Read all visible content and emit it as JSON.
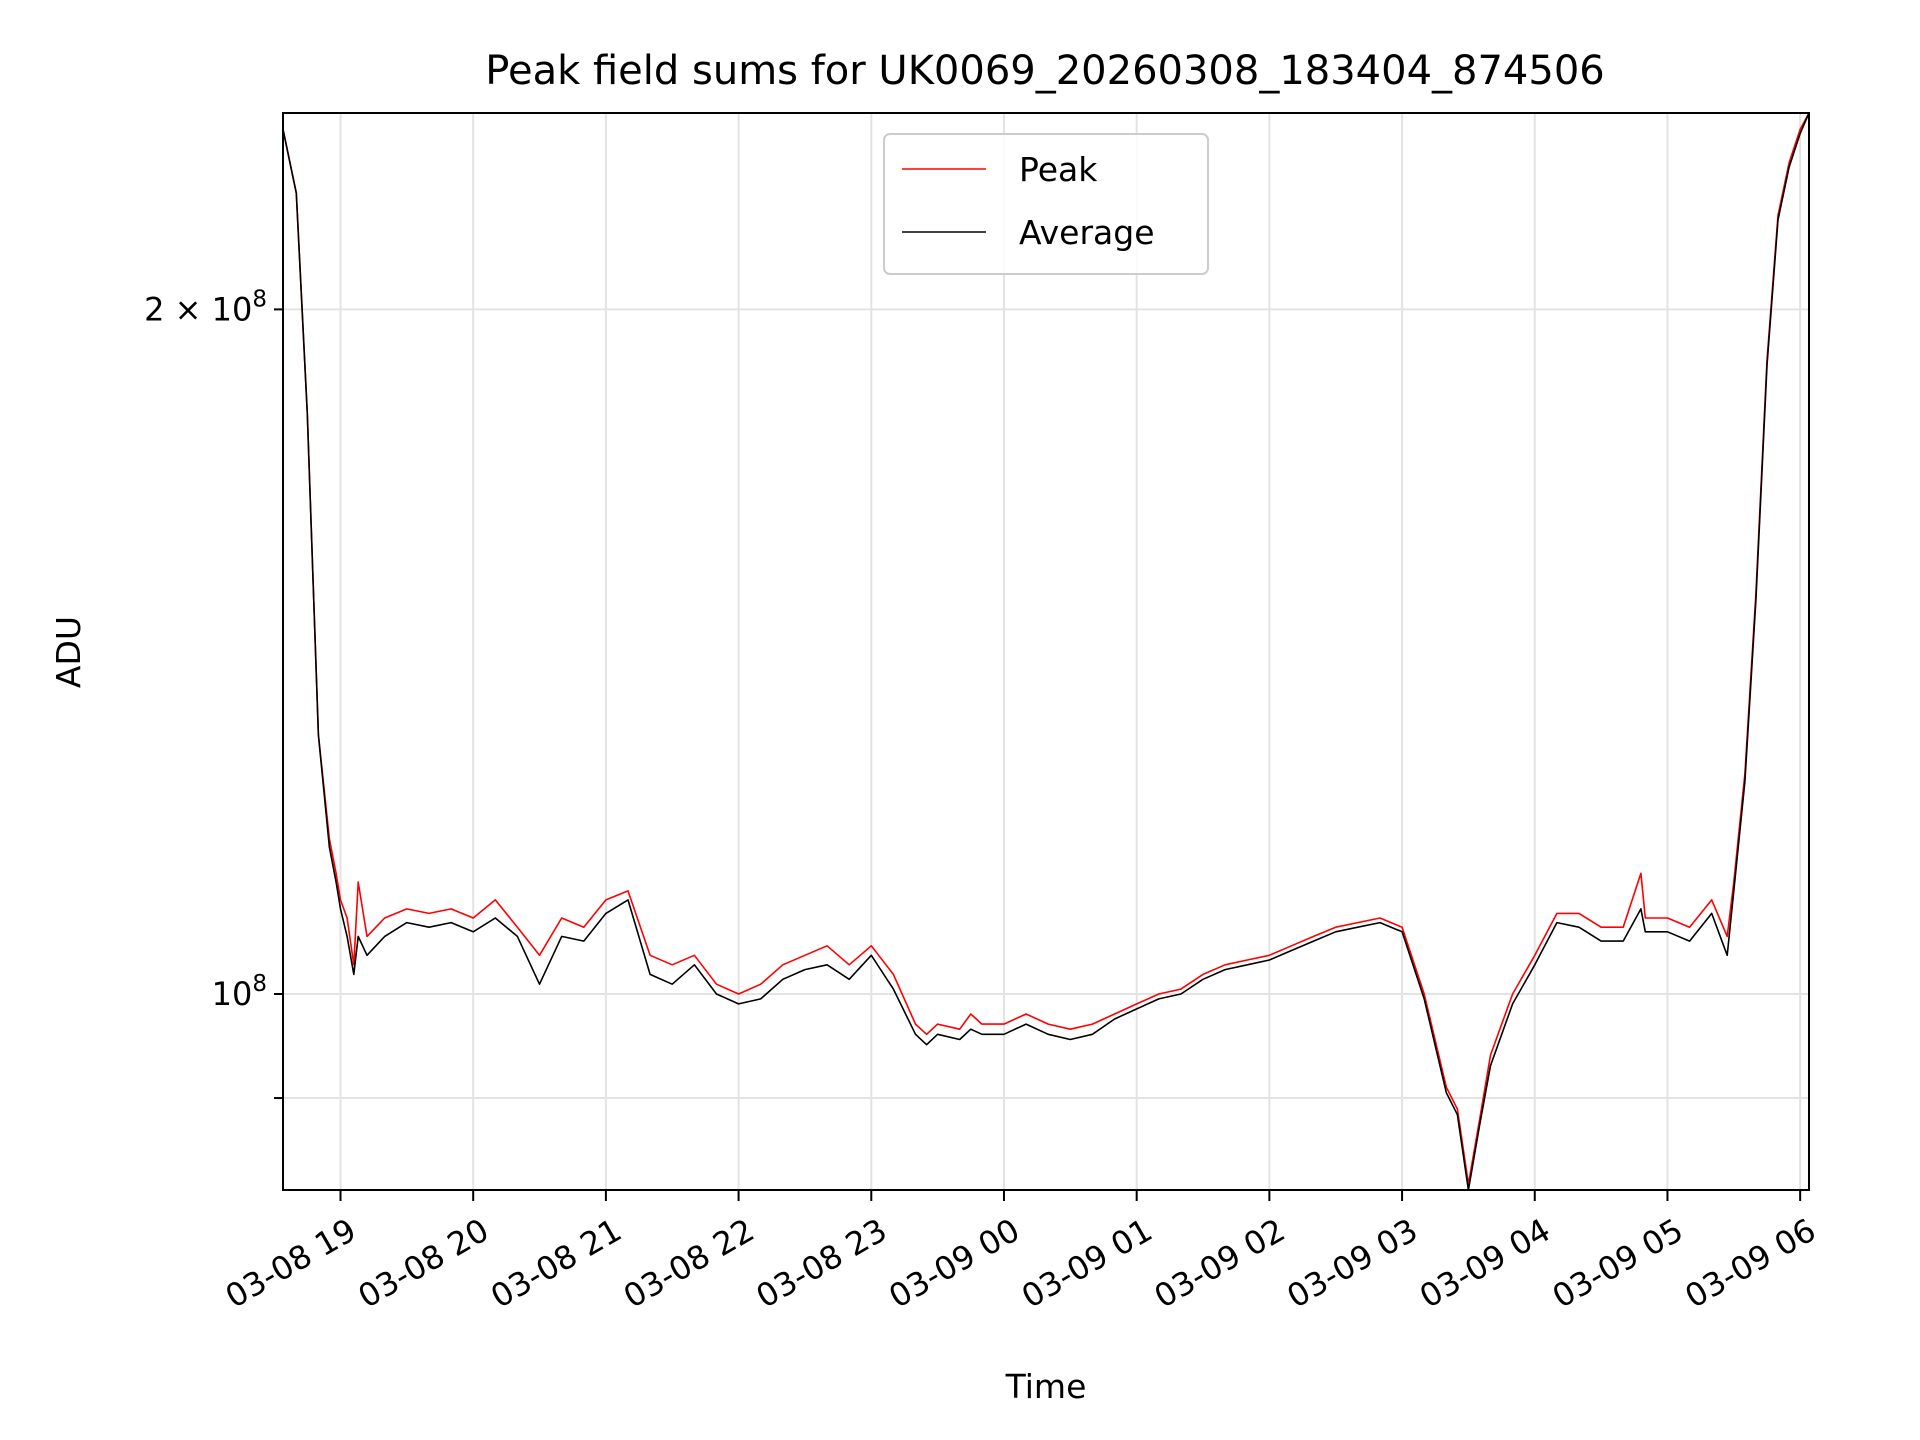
{
  "chart_data": {
    "type": "line",
    "title": "Peak field sums for UK0069_20260308_183404_874506",
    "xlabel": "Time",
    "ylabel": "ADU",
    "yscale": "log",
    "xlim": [
      "2026-03-08 18:34",
      "2026-03-09 06:04"
    ],
    "ylim": [
      82000000,
      244000000
    ],
    "x_ticks": [
      "03-08 19",
      "03-08 20",
      "03-08 21",
      "03-08 22",
      "03-08 23",
      "03-09 00",
      "03-09 01",
      "03-09 02",
      "03-09 03",
      "03-09 04",
      "03-09 05",
      "03-09 06"
    ],
    "x_tick_times": [
      "2026-03-08 19:00",
      "2026-03-08 20:00",
      "2026-03-08 21:00",
      "2026-03-08 22:00",
      "2026-03-08 23:00",
      "2026-03-09 00:00",
      "2026-03-09 01:00",
      "2026-03-09 02:00",
      "2026-03-09 03:00",
      "2026-03-09 04:00",
      "2026-03-09 05:00",
      "2026-03-09 06:00"
    ],
    "y_ticks": [
      {
        "value": 200000000,
        "label": "2 × 10",
        "exp": "8"
      },
      {
        "value": 100000000,
        "label": "10",
        "exp": "8"
      },
      {
        "value": 90000000,
        "label": "",
        "exp": ""
      }
    ],
    "grid": true,
    "legend_position": "upper center",
    "series": [
      {
        "name": "Peak",
        "color": "#ff0000",
        "x": [
          "2026-03-08 18:34",
          "2026-03-08 18:40",
          "2026-03-08 18:45",
          "2026-03-08 18:50",
          "2026-03-08 18:55",
          "2026-03-08 18:58",
          "2026-03-08 19:00",
          "2026-03-08 19:03",
          "2026-03-08 19:06",
          "2026-03-08 19:08",
          "2026-03-08 19:12",
          "2026-03-08 19:20",
          "2026-03-08 19:30",
          "2026-03-08 19:40",
          "2026-03-08 19:50",
          "2026-03-08 20:00",
          "2026-03-08 20:10",
          "2026-03-08 20:20",
          "2026-03-08 20:30",
          "2026-03-08 20:40",
          "2026-03-08 20:50",
          "2026-03-08 21:00",
          "2026-03-08 21:10",
          "2026-03-08 21:20",
          "2026-03-08 21:30",
          "2026-03-08 21:40",
          "2026-03-08 21:50",
          "2026-03-08 22:00",
          "2026-03-08 22:10",
          "2026-03-08 22:20",
          "2026-03-08 22:30",
          "2026-03-08 22:40",
          "2026-03-08 22:50",
          "2026-03-08 23:00",
          "2026-03-08 23:10",
          "2026-03-08 23:20",
          "2026-03-08 23:25",
          "2026-03-08 23:30",
          "2026-03-08 23:40",
          "2026-03-08 23:45",
          "2026-03-08 23:50",
          "2026-03-09 00:00",
          "2026-03-09 00:10",
          "2026-03-09 00:20",
          "2026-03-09 00:30",
          "2026-03-09 00:40",
          "2026-03-09 00:50",
          "2026-03-09 01:00",
          "2026-03-09 01:10",
          "2026-03-09 01:20",
          "2026-03-09 01:30",
          "2026-03-09 01:40",
          "2026-03-09 01:50",
          "2026-03-09 02:00",
          "2026-03-09 02:10",
          "2026-03-09 02:20",
          "2026-03-09 02:30",
          "2026-03-09 02:40",
          "2026-03-09 02:50",
          "2026-03-09 03:00",
          "2026-03-09 03:10",
          "2026-03-09 03:20",
          "2026-03-09 03:25",
          "2026-03-09 03:30",
          "2026-03-09 03:35",
          "2026-03-09 03:40",
          "2026-03-09 03:50",
          "2026-03-09 04:00",
          "2026-03-09 04:10",
          "2026-03-09 04:20",
          "2026-03-09 04:30",
          "2026-03-09 04:40",
          "2026-03-09 04:48",
          "2026-03-09 04:50",
          "2026-03-09 05:00",
          "2026-03-09 05:10",
          "2026-03-09 05:20",
          "2026-03-09 05:27",
          "2026-03-09 05:30",
          "2026-03-09 05:35",
          "2026-03-09 05:40",
          "2026-03-09 05:45",
          "2026-03-09 05:50",
          "2026-03-09 05:55",
          "2026-03-09 06:00",
          "2026-03-09 06:04"
        ],
        "y": [
          240000000,
          225000000,
          180000000,
          130000000,
          117000000,
          113000000,
          110000000,
          108000000,
          103000000,
          112000000,
          106000000,
          108000000,
          109000000,
          108500000,
          109000000,
          108000000,
          110000000,
          107000000,
          104000000,
          108000000,
          107000000,
          110000000,
          111000000,
          104000000,
          103000000,
          104000000,
          101000000,
          100000000,
          101000000,
          103000000,
          104000000,
          105000000,
          103000000,
          105000000,
          102000000,
          97000000,
          96000000,
          97000000,
          96500000,
          98000000,
          97000000,
          97000000,
          98000000,
          97000000,
          96500000,
          97000000,
          98000000,
          99000000,
          100000000,
          100500000,
          102000000,
          103000000,
          103500000,
          104000000,
          105000000,
          106000000,
          107000000,
          107500000,
          108000000,
          107000000,
          100000000,
          91000000,
          89000000,
          82500000,
          88000000,
          94000000,
          100000000,
          104000000,
          108500000,
          108500000,
          107000000,
          107000000,
          113000000,
          108000000,
          108000000,
          107000000,
          110000000,
          106000000,
          112000000,
          125000000,
          150000000,
          190000000,
          220000000,
          232000000,
          240000000,
          244000000
        ]
      },
      {
        "name": "Average",
        "color": "#000000",
        "x": [
          "2026-03-08 18:34",
          "2026-03-08 18:40",
          "2026-03-08 18:45",
          "2026-03-08 18:50",
          "2026-03-08 18:55",
          "2026-03-08 18:58",
          "2026-03-08 19:00",
          "2026-03-08 19:03",
          "2026-03-08 19:06",
          "2026-03-08 19:08",
          "2026-03-08 19:12",
          "2026-03-08 19:20",
          "2026-03-08 19:30",
          "2026-03-08 19:40",
          "2026-03-08 19:50",
          "2026-03-08 20:00",
          "2026-03-08 20:10",
          "2026-03-08 20:20",
          "2026-03-08 20:30",
          "2026-03-08 20:40",
          "2026-03-08 20:50",
          "2026-03-08 21:00",
          "2026-03-08 21:10",
          "2026-03-08 21:20",
          "2026-03-08 21:30",
          "2026-03-08 21:40",
          "2026-03-08 21:50",
          "2026-03-08 22:00",
          "2026-03-08 22:10",
          "2026-03-08 22:20",
          "2026-03-08 22:30",
          "2026-03-08 22:40",
          "2026-03-08 22:50",
          "2026-03-08 23:00",
          "2026-03-08 23:10",
          "2026-03-08 23:20",
          "2026-03-08 23:25",
          "2026-03-08 23:30",
          "2026-03-08 23:40",
          "2026-03-08 23:45",
          "2026-03-08 23:50",
          "2026-03-09 00:00",
          "2026-03-09 00:10",
          "2026-03-09 00:20",
          "2026-03-09 00:30",
          "2026-03-09 00:40",
          "2026-03-09 00:50",
          "2026-03-09 01:00",
          "2026-03-09 01:10",
          "2026-03-09 01:20",
          "2026-03-09 01:30",
          "2026-03-09 01:40",
          "2026-03-09 01:50",
          "2026-03-09 02:00",
          "2026-03-09 02:10",
          "2026-03-09 02:20",
          "2026-03-09 02:30",
          "2026-03-09 02:40",
          "2026-03-09 02:50",
          "2026-03-09 03:00",
          "2026-03-09 03:10",
          "2026-03-09 03:20",
          "2026-03-09 03:25",
          "2026-03-09 03:30",
          "2026-03-09 03:35",
          "2026-03-09 03:40",
          "2026-03-09 03:50",
          "2026-03-09 04:00",
          "2026-03-09 04:10",
          "2026-03-09 04:20",
          "2026-03-09 04:30",
          "2026-03-09 04:40",
          "2026-03-09 04:48",
          "2026-03-09 04:50",
          "2026-03-09 05:00",
          "2026-03-09 05:10",
          "2026-03-09 05:20",
          "2026-03-09 05:27",
          "2026-03-09 05:30",
          "2026-03-09 05:35",
          "2026-03-09 05:40",
          "2026-03-09 05:45",
          "2026-03-09 05:50",
          "2026-03-09 05:55",
          "2026-03-09 06:00",
          "2026-03-09 06:04"
        ],
        "y": [
          240000000,
          225000000,
          180000000,
          130000000,
          116000000,
          112000000,
          109000000,
          106000000,
          102000000,
          106000000,
          104000000,
          106000000,
          107500000,
          107000000,
          107500000,
          106500000,
          108000000,
          106000000,
          101000000,
          106000000,
          105500000,
          108500000,
          110000000,
          102000000,
          101000000,
          103000000,
          100000000,
          99000000,
          99500000,
          101500000,
          102500000,
          103000000,
          101500000,
          104000000,
          100500000,
          96000000,
          95000000,
          96000000,
          95500000,
          96500000,
          96000000,
          96000000,
          97000000,
          96000000,
          95500000,
          96000000,
          97500000,
          98500000,
          99500000,
          100000000,
          101500000,
          102500000,
          103000000,
          103500000,
          104500000,
          105500000,
          106500000,
          107000000,
          107500000,
          106500000,
          99500000,
          90500000,
          88500000,
          82000000,
          87500000,
          93000000,
          99000000,
          103000000,
          107500000,
          107000000,
          105500000,
          105500000,
          109000000,
          106500000,
          106500000,
          105500000,
          108500000,
          104000000,
          111000000,
          124000000,
          149000000,
          189000000,
          219000000,
          231000000,
          239000000,
          244000000
        ]
      }
    ]
  }
}
